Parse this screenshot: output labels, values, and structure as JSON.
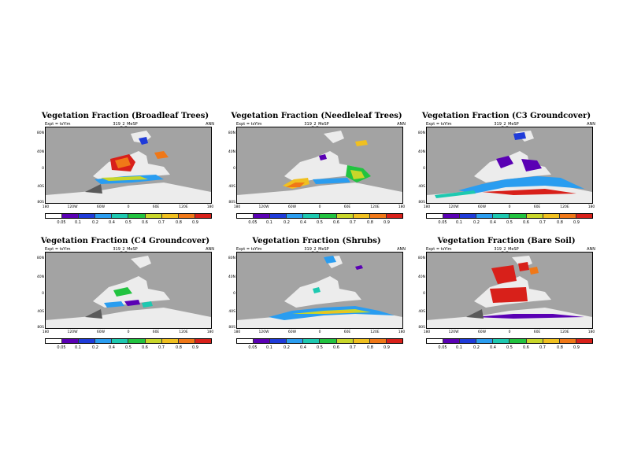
{
  "colors": {
    "ocean": "#a3a3a3",
    "land": "#ececec",
    "undefined": "#ffffff",
    "scale": [
      "#ffffff",
      "#5a00b4",
      "#1f3bd9",
      "#2a9df0",
      "#1ec9b0",
      "#22c340",
      "#c8d62a",
      "#f0c020",
      "#f07818",
      "#d8201a"
    ]
  },
  "map_axes": {
    "yticks": [
      "80N",
      "40N",
      "0",
      "40S",
      "80S"
    ],
    "xticks": [
      "180",
      "120W",
      "60W",
      "0",
      "60E",
      "120E",
      "180"
    ]
  },
  "colorbar_labels": [
    [
      "0.05",
      "0.1",
      "0.2",
      "0.4",
      "0.5",
      "0.6",
      "0.7",
      "0.8",
      "0.9"
    ],
    [
      "0.05",
      "0.1",
      "0.2",
      "0.4",
      "0.5",
      "0.6",
      "0.7",
      "0.8",
      "0.9"
    ],
    [
      "0.05",
      "0.1",
      "0.2",
      "0.4",
      "0.5",
      "0.6",
      "0.7",
      "0.8",
      "0.9"
    ],
    [
      "0.05",
      "0.1",
      "0.2",
      "0.4",
      "0.5",
      "0.6",
      "0.7",
      "0.8",
      "0.9"
    ],
    [
      "0.05",
      "0.1",
      "0.2",
      "0.4",
      "0.5",
      "0.6",
      "0.7",
      "0.8",
      "0.9"
    ],
    [
      "0.05",
      "0.1",
      "0.2",
      "0.4",
      "0.5",
      "0.6",
      "0.7",
      "0.8",
      "0.9"
    ]
  ],
  "panels": [
    {
      "title": "Vegetation Fraction (Broadleaf Trees)",
      "expt": "Expt = tsYlm",
      "run": "319_2_MeSP",
      "period": "ANN"
    },
    {
      "title": "Vegetation Fraction (Needleleaf Trees)",
      "expt": "Expt = tsYlm",
      "run": "319_2_MeSP",
      "period": "ANN"
    },
    {
      "title": "Vegetation Fraction (C3 Groundcover)",
      "expt": "Expt = tsYlm",
      "run": "319_2_MeSP",
      "period": "ANN"
    },
    {
      "title": "Vegetation Fraction (C4 Groundcover)",
      "expt": "Expt = tsYlm",
      "run": "319_2_MeSP",
      "period": "ANN"
    },
    {
      "title": "Vegetation Fraction (Shrubs)",
      "expt": "Expt = tsYlm",
      "run": "319_2_MeSP",
      "period": "ANN"
    },
    {
      "title": "Vegetation Fraction (Bare Soil)",
      "expt": "Expt = tsYlm",
      "run": "319_2_MeSP",
      "period": "ANN"
    }
  ]
}
